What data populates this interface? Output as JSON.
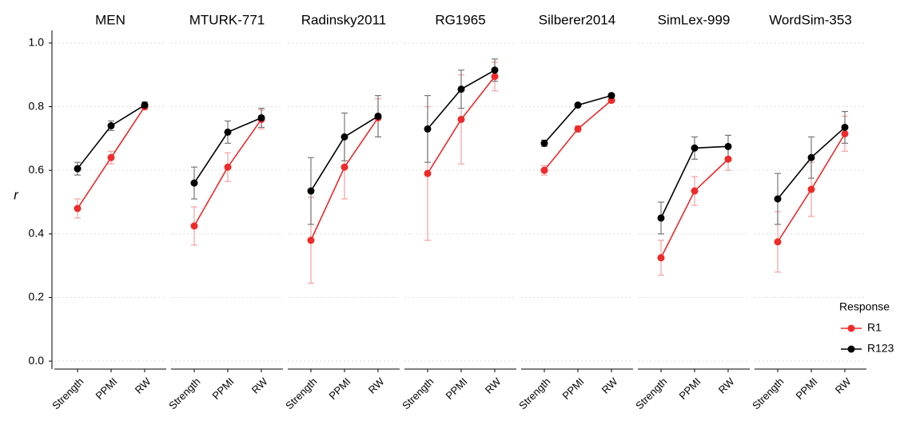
{
  "chart_data": {
    "type": "line",
    "y_label": "r",
    "ylim": [
      -0.025,
      1.04
    ],
    "yticks": [
      {
        "value": 0,
        "label": "0.0"
      },
      {
        "value": 0.2,
        "label": "0.2"
      },
      {
        "value": 0.4,
        "label": "0.4"
      },
      {
        "value": 0.6,
        "label": "0.6"
      },
      {
        "value": 0.8,
        "label": "0.8"
      },
      {
        "value": 1,
        "label": "1.0"
      }
    ],
    "grid": true,
    "categories": [
      "Strength",
      "PPMI",
      "RW"
    ],
    "legend_title": "Response",
    "legend": "bottom-right",
    "series": [
      {
        "name": "R1",
        "color": "#ee2a2a",
        "error_color": "#f4a0a0"
      },
      {
        "name": "R123",
        "color": "#000000",
        "error_color": "#777777"
      }
    ],
    "facets": [
      {
        "title": "MEN",
        "values": [
          [
            0.48,
            0.64,
            0.8
          ],
          [
            0.605,
            0.74,
            0.805
          ]
        ],
        "errors": [
          [
            0.03,
            0.02,
            0.01
          ],
          [
            0.02,
            0.015,
            0.01
          ]
        ]
      },
      {
        "title": "MTURK-771",
        "values": [
          [
            0.425,
            0.61,
            0.76
          ],
          [
            0.56,
            0.72,
            0.765
          ]
        ],
        "errors": [
          [
            0.06,
            0.045,
            0.03
          ],
          [
            0.05,
            0.035,
            0.03
          ]
        ]
      },
      {
        "title": "Radinsky2011",
        "values": [
          [
            0.38,
            0.61,
            0.765
          ],
          [
            0.535,
            0.705,
            0.77
          ]
        ],
        "errors": [
          [
            0.135,
            0.1,
            0.06
          ],
          [
            0.105,
            0.075,
            0.065
          ]
        ]
      },
      {
        "title": "RG1965",
        "values": [
          [
            0.59,
            0.76,
            0.895
          ],
          [
            0.73,
            0.855,
            0.915
          ]
        ],
        "errors": [
          [
            0.21,
            0.14,
            0.045
          ],
          [
            0.105,
            0.06,
            0.035
          ]
        ]
      },
      {
        "title": "Silberer2014",
        "values": [
          [
            0.6,
            0.73,
            0.82
          ],
          [
            0.685,
            0.805,
            0.835
          ]
        ],
        "errors": [
          [
            0.015,
            0.01,
            0.005
          ],
          [
            0.01,
            0.005,
            0.005
          ]
        ]
      },
      {
        "title": "SimLex-999",
        "values": [
          [
            0.325,
            0.535,
            0.635
          ],
          [
            0.45,
            0.67,
            0.675
          ]
        ],
        "errors": [
          [
            0.055,
            0.045,
            0.035
          ],
          [
            0.05,
            0.035,
            0.035
          ]
        ]
      },
      {
        "title": "WordSim-353",
        "values": [
          [
            0.375,
            0.54,
            0.715
          ],
          [
            0.51,
            0.64,
            0.735
          ]
        ],
        "errors": [
          [
            0.095,
            0.085,
            0.055
          ],
          [
            0.08,
            0.065,
            0.05
          ]
        ]
      }
    ]
  }
}
